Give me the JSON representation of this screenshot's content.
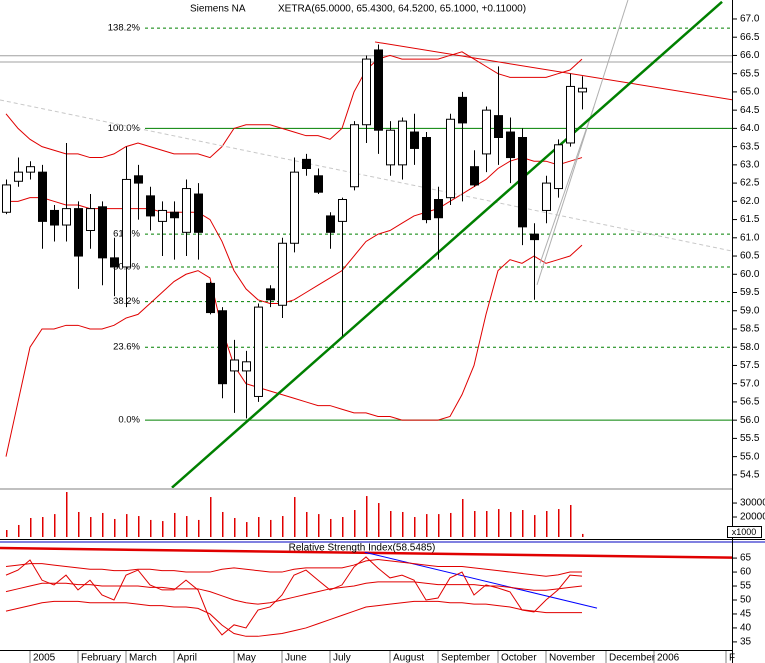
{
  "chart_data": [
    {
      "type": "candlestick",
      "title": "Siemens NA",
      "subtitle": "XETRA(65.0000, 65.4300, 64.5200, 65.1000, +0.11000)",
      "categories": [
        null,
        null,
        "2005",
        null,
        null,
        null,
        "February",
        null,
        null,
        null,
        "March",
        null,
        null,
        null,
        "April",
        null,
        null,
        null,
        null,
        "May",
        null,
        null,
        null,
        "June",
        null,
        null,
        null,
        "July",
        null,
        null,
        null,
        null,
        "August",
        null,
        null,
        null,
        "September",
        null,
        null,
        null,
        null,
        "October",
        null,
        null,
        null,
        "November",
        null,
        null,
        null,
        null,
        "December",
        null,
        null,
        null,
        "2006",
        null,
        null,
        null,
        null,
        null,
        "F",
        null,
        null
      ],
      "open": [
        61.7,
        62.55,
        62.8,
        62.8,
        61.75,
        61.35,
        61.8,
        61.2,
        61.85,
        60.45,
        60.2,
        62.7,
        62.15,
        61.45,
        61.7,
        61.15,
        62.2,
        59.75,
        59.0,
        57.35,
        57.35,
        56.65,
        59.6,
        59.15,
        60.85,
        63.15,
        62.7,
        61.6,
        61.45,
        62.4,
        64.1,
        66.15,
        63.0,
        63.0,
        63.9,
        63.75,
        62.05,
        62.1,
        64.85,
        62.95,
        63.3,
        64.35,
        63.9,
        63.75,
        61.1,
        61.75,
        62.35,
        63.6,
        65.0,
        null,
        null,
        null,
        null,
        null,
        null,
        null,
        null,
        null,
        null,
        null,
        null,
        null,
        null
      ],
      "high": [
        62.6,
        63.2,
        63.1,
        63.0,
        61.9,
        63.6,
        62.0,
        62.2,
        62.0,
        61.0,
        63.5,
        63.0,
        62.4,
        62.0,
        62.0,
        62.6,
        62.5,
        59.8,
        59.1,
        58.2,
        57.9,
        59.2,
        59.7,
        61.0,
        63.2,
        63.3,
        62.9,
        61.7,
        62.1,
        64.2,
        66.0,
        66.3,
        64.2,
        64.3,
        64.4,
        63.9,
        62.4,
        64.4,
        65.0,
        63.4,
        64.6,
        65.7,
        64.3,
        64.0,
        61.4,
        62.7,
        63.7,
        65.5,
        65.43,
        null,
        null,
        null,
        null,
        null,
        null,
        null,
        null,
        null,
        null,
        null,
        null,
        null,
        null
      ],
      "low": [
        61.65,
        62.4,
        62.6,
        60.7,
        60.9,
        60.9,
        59.6,
        60.7,
        59.7,
        59.4,
        59.1,
        61.5,
        61.2,
        60.5,
        60.4,
        60.5,
        60.4,
        58.9,
        56.6,
        56.2,
        56.05,
        56.5,
        59.1,
        58.8,
        60.6,
        62.7,
        62.2,
        60.7,
        58.3,
        62.3,
        63.6,
        63.3,
        62.7,
        62.6,
        63.0,
        61.4,
        60.4,
        61.9,
        62.0,
        62.4,
        62.8,
        63.0,
        62.5,
        60.8,
        59.3,
        61.4,
        62.1,
        63.5,
        64.52,
        null,
        null,
        null,
        null,
        null,
        null,
        null,
        null,
        null,
        null,
        null,
        null,
        null,
        null
      ],
      "close": [
        62.45,
        62.8,
        62.95,
        61.45,
        61.35,
        61.8,
        60.5,
        61.8,
        60.45,
        60.2,
        62.6,
        62.5,
        61.6,
        61.75,
        61.55,
        62.35,
        61.15,
        58.95,
        57.0,
        57.65,
        57.6,
        59.1,
        59.3,
        60.85,
        62.8,
        62.9,
        62.25,
        61.15,
        62.05,
        64.1,
        65.9,
        63.95,
        63.95,
        64.2,
        63.45,
        61.5,
        61.55,
        64.25,
        64.15,
        62.45,
        64.5,
        63.75,
        63.2,
        61.3,
        60.95,
        62.5,
        63.55,
        65.15,
        65.1,
        null,
        null,
        null,
        null,
        null,
        null,
        null,
        null,
        null,
        null,
        null,
        null,
        null,
        null
      ],
      "up_color": "#ffffff",
      "down_color": "#000000",
      "overlays": [
        {
          "color": "#e00000",
          "values": [
            64.4,
            64.0,
            63.7,
            63.5,
            63.4,
            63.3,
            63.3,
            63.2,
            63.2,
            63.3,
            63.5,
            63.6,
            63.5,
            63.4,
            63.3,
            63.3,
            63.3,
            63.2,
            63.5,
            64.0,
            64.1,
            64.1,
            64.1,
            64.0,
            63.9,
            63.8,
            63.8,
            63.7,
            64.0,
            65.0,
            65.6,
            65.9,
            66.0,
            65.9,
            65.9,
            65.9,
            65.9,
            66.0,
            66.1,
            65.9,
            65.7,
            65.5,
            65.4,
            65.4,
            65.4,
            65.4,
            65.5,
            65.6,
            65.9,
            null,
            null,
            null,
            null,
            null,
            null,
            null,
            null,
            null,
            null,
            null,
            null,
            null,
            null
          ]
        },
        {
          "color": "#e00000",
          "values": [
            62.0,
            62.0,
            62.1,
            62.1,
            62.0,
            61.9,
            61.9,
            61.8,
            61.8,
            61.8,
            61.8,
            61.8,
            61.8,
            61.7,
            61.7,
            61.7,
            61.7,
            61.5,
            60.9,
            60.1,
            59.6,
            59.3,
            59.2,
            59.2,
            59.3,
            59.5,
            59.7,
            59.9,
            60.1,
            60.5,
            60.9,
            61.1,
            61.2,
            61.4,
            61.6,
            61.7,
            61.8,
            62.0,
            62.2,
            62.4,
            62.6,
            62.9,
            63.1,
            63.2,
            63.1,
            63.1,
            63.0,
            63.1,
            63.2,
            null,
            null,
            null,
            null,
            null,
            null,
            null,
            null,
            null,
            null,
            null,
            null,
            null,
            null
          ]
        },
        {
          "color": "#e00000",
          "values": [
            55.0,
            56.5,
            58.0,
            58.5,
            58.5,
            58.6,
            58.6,
            58.5,
            58.5,
            58.6,
            58.8,
            58.9,
            59.2,
            59.5,
            59.8,
            60.0,
            60.1,
            59.9,
            58.5,
            57.5,
            57.0,
            56.9,
            56.8,
            56.7,
            56.6,
            56.5,
            56.4,
            56.4,
            56.3,
            56.2,
            56.2,
            56.1,
            56.1,
            56.0,
            56.0,
            56.0,
            56.0,
            56.1,
            56.7,
            57.5,
            58.9,
            60.1,
            60.4,
            60.3,
            60.5,
            60.3,
            60.4,
            60.5,
            60.8,
            null,
            null,
            null,
            null,
            null,
            null,
            null,
            null,
            null,
            null,
            null,
            null,
            null,
            null
          ]
        }
      ],
      "fib_color": "#008000",
      "fib_levels": [
        {
          "label": "138.2%",
          "price": 66.75,
          "style": "dashed"
        },
        {
          "label": "100.0%",
          "price": 64.0,
          "style": "solid"
        },
        {
          "label": "61.8%",
          "price": 61.1,
          "style": "dashed"
        },
        {
          "label": "50.0%",
          "price": 60.2,
          "style": "dashed"
        },
        {
          "label": "38.2%",
          "price": 59.25,
          "style": "dashed"
        },
        {
          "label": "23.6%",
          "price": 58.0,
          "style": "dashed"
        },
        {
          "label": "0.0%",
          "price": 56.0,
          "style": "solid"
        }
      ],
      "hlines": [
        {
          "color": "#a0a0a0",
          "value": 65.99
        },
        {
          "color": "#a0a0a0",
          "value": 65.82
        }
      ],
      "trendlines": [
        {
          "color": "#c8c8c8",
          "width": 1,
          "dashed": true,
          "x": [
            -0.5,
            63.25
          ],
          "y": [
            64.78,
            60.45
          ]
        },
        {
          "color": "#e00000",
          "width": 1,
          "x": [
            30.75,
            63.25
          ],
          "y": [
            66.37,
            64.64
          ]
        },
        {
          "color": "#b0b0b0",
          "width": 1,
          "x": [
            44.25,
            51.83
          ],
          "y": [
            59.71,
            67.52
          ]
        },
        {
          "color": "#b0b0b0",
          "width": 1,
          "x": [
            44.5,
            49.0
          ],
          "y": [
            60.3,
            64.6
          ]
        },
        {
          "color": "#008000",
          "width": 2.5,
          "x": [
            13.83,
            59.67
          ],
          "y": [
            54.15,
            67.47
          ]
        }
      ],
      "ylim": [
        54.14,
        67.52
      ],
      "yticks": [
        54.5,
        {
          "value": 55,
          "label": "55.0"
        },
        55.5,
        {
          "value": 56,
          "label": "56.0"
        },
        56.5,
        {
          "value": 57,
          "label": "57.0"
        },
        57.5,
        {
          "value": 58,
          "label": "58.0"
        },
        58.5,
        {
          "value": 59,
          "label": "59.0"
        },
        59.5,
        {
          "value": 60,
          "label": "60.0"
        },
        60.5,
        {
          "value": 61,
          "label": "61.0"
        },
        61.5,
        {
          "value": 62,
          "label": "62.0"
        },
        62.5,
        {
          "value": 63,
          "label": "63.0"
        },
        63.5,
        {
          "value": 64,
          "label": "64.0"
        },
        64.5,
        {
          "value": 65,
          "label": "65.0"
        },
        65.5,
        {
          "value": 66,
          "label": "66.0"
        },
        66.5,
        {
          "value": 67,
          "label": "67.0"
        }
      ]
    },
    {
      "type": "bar",
      "color": "#e00000",
      "unit_label": "x1000",
      "values": [
        10700,
        14300,
        19300,
        20000,
        22100,
        37900,
        23600,
        20000,
        22900,
        18600,
        22100,
        20700,
        17900,
        17100,
        22900,
        20700,
        17900,
        34300,
        23600,
        19300,
        16400,
        20000,
        17900,
        20700,
        34300,
        23600,
        22100,
        18600,
        20000,
        25000,
        35000,
        30000,
        24300,
        23600,
        20000,
        22100,
        22100,
        22900,
        32900,
        24300,
        24300,
        25700,
        23600,
        25000,
        21400,
        24300,
        25700,
        28600,
        7900,
        null,
        null,
        null,
        null,
        null,
        null,
        null,
        null,
        null,
        null,
        null,
        null,
        null,
        null
      ],
      "ylim": [
        5700,
        37900
      ],
      "yticks": [
        20000,
        30000
      ]
    },
    {
      "type": "line",
      "title": "Relative Strength Index(58.5485)",
      "series": [
        {
          "color": "#e00000",
          "values": [
            62,
            62.5,
            63,
            63,
            62.5,
            62,
            61.5,
            61,
            61,
            60.5,
            60.5,
            61,
            61,
            60.5,
            60.5,
            60,
            60,
            60,
            61,
            61.5,
            61,
            60.5,
            60,
            60,
            61,
            61.5,
            61.5,
            61.5,
            61.5,
            62.5,
            64,
            64.5,
            64,
            63.5,
            63,
            62.5,
            62,
            62,
            62,
            61.5,
            61,
            60.5,
            60,
            59.5,
            59,
            58.5,
            59,
            60,
            60,
            null,
            null,
            null,
            null,
            null,
            null,
            null,
            null,
            null,
            null,
            null,
            null,
            null,
            null
          ]
        },
        {
          "color": "#e00000",
          "values": [
            53,
            54,
            55,
            56,
            56,
            56,
            55.5,
            55.5,
            55,
            55,
            55,
            55,
            54.5,
            54.5,
            54,
            54,
            54,
            53,
            51.5,
            50,
            49,
            48.5,
            49,
            50,
            51,
            52,
            53,
            54,
            54.5,
            55,
            56,
            56.5,
            56.5,
            56.5,
            56.5,
            56,
            55.5,
            55.5,
            55.5,
            55.5,
            55,
            55,
            54.5,
            54,
            53.5,
            53.5,
            54,
            54.5,
            55,
            null,
            null,
            null,
            null,
            null,
            null,
            null,
            null,
            null,
            null,
            null,
            null,
            null,
            null
          ]
        },
        {
          "color": "#e00000",
          "values": [
            46,
            47,
            48,
            49,
            49.5,
            49.5,
            49.5,
            49,
            49,
            49,
            49,
            48.5,
            48,
            48,
            47.5,
            47.5,
            47,
            45,
            41,
            38,
            37,
            37,
            37.5,
            38,
            39,
            40,
            41.5,
            43,
            44.5,
            46,
            47.5,
            48,
            48.5,
            49,
            49.5,
            49.5,
            49.5,
            49,
            49,
            48.5,
            48.5,
            48,
            47.5,
            46.5,
            46,
            45.5,
            45.5,
            45.5,
            45.5,
            null,
            null,
            null,
            null,
            null,
            null,
            null,
            null,
            null,
            null,
            null,
            null,
            null,
            null
          ]
        },
        {
          "color": "#e00000",
          "values": [
            58.9,
            60.7,
            64.3,
            57.1,
            55.4,
            58.9,
            53.6,
            57.1,
            51.8,
            50.0,
            58.9,
            60.7,
            55.4,
            53.6,
            53.6,
            57.1,
            53.6,
            42.9,
            37.5,
            41.1,
            40.0,
            46.4,
            47.5,
            51.8,
            58.9,
            60.7,
            57.1,
            53.6,
            55.4,
            61.8,
            65.4,
            61.4,
            57.9,
            58.9,
            57.1,
            50.0,
            50.7,
            57.9,
            60.0,
            51.8,
            55.4,
            54.3,
            52.9,
            46.4,
            45.7,
            50.0,
            53.6,
            58.9,
            58.5485,
            null,
            null,
            null,
            null,
            null,
            null,
            null,
            null,
            null,
            null,
            null,
            null,
            null,
            null
          ]
        }
      ],
      "trendlines": [
        {
          "color": "#e00000",
          "width": 2.5,
          "x": [
            -0.5,
            63.25
          ],
          "y": [
            68.6,
            65.0
          ]
        },
        {
          "color": "#0000ff",
          "width": 1,
          "x": [
            29.9,
            49.25
          ],
          "y": [
            67.1,
            47.1
          ]
        }
      ],
      "ylim": [
        32.1,
        70.4
      ],
      "yticks": [
        35,
        40,
        45,
        50,
        55,
        60,
        65
      ]
    }
  ]
}
